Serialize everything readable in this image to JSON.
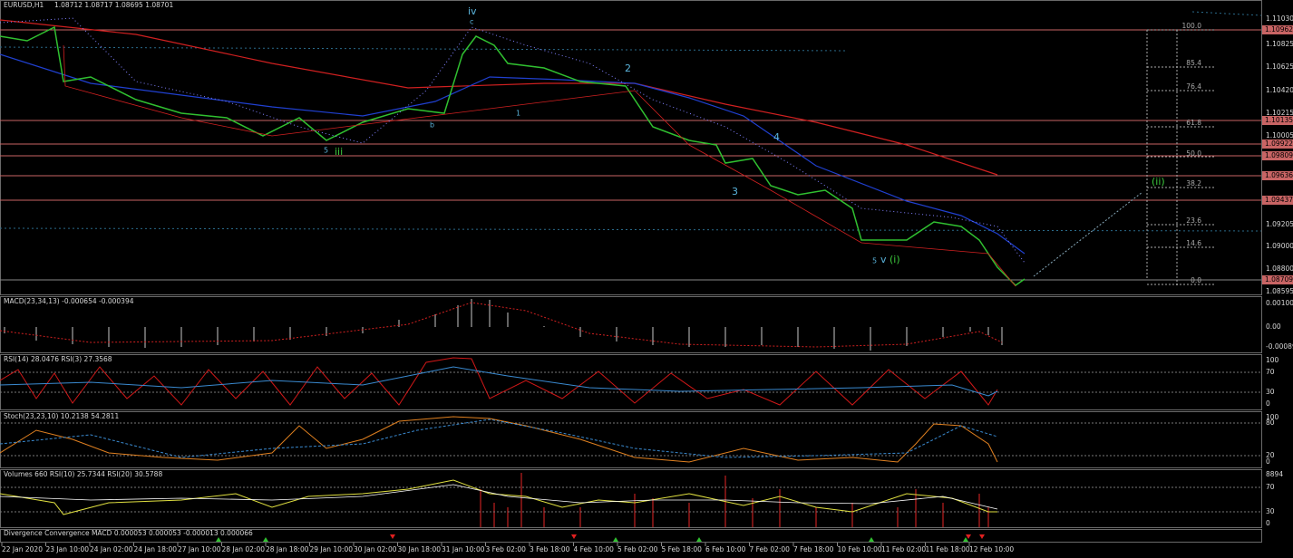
{
  "main": {
    "symbol": "EURUSD,H1",
    "quote": "1.08712 1.08717 1.08695 1.08701",
    "price_labels": [
      "1.11030",
      "1.10825",
      "1.10625",
      "1.10420",
      "1.10215",
      "1.10005",
      "1.09205",
      "1.09000",
      "1.08800",
      "1.08595"
    ],
    "level_labels": [
      "1.10962",
      "1.10135",
      "1.09922",
      "1.09809",
      "1.09636",
      "1.09437",
      "1.08709"
    ],
    "fib_labels": [
      "100.0",
      "85.4",
      "76.4",
      "61.8",
      "50.0",
      "38.2",
      "23.6",
      "14.6",
      "0.0"
    ],
    "wave_labels": [
      "iv",
      "c",
      "b",
      "1",
      "2",
      "3",
      "4",
      "5",
      "iii",
      "5",
      "v",
      "(i)",
      "(ii)"
    ]
  },
  "panels": [
    {
      "title": "MACD(23,34,13) -0.000654 -0.000394",
      "scale": [
        "0.001009",
        "0.00",
        "-0.000896"
      ]
    },
    {
      "title": "RSI(14) 28.0476  RSI(3) 27.3568",
      "scale": [
        "100",
        "70",
        "30",
        "0"
      ]
    },
    {
      "title": "Stoch(23,23,10) 10.2138 54.2811",
      "scale": [
        "100",
        "80",
        "20",
        "0"
      ]
    },
    {
      "title": "Volumes 660  RSI(10) 25.7344  RSI(20) 30.5788",
      "scale": [
        "8894",
        "70",
        "30",
        "0"
      ]
    },
    {
      "title": "Divergence Convergence MACD 0.000053 0.000053 -0.000013 0.000066",
      "scale": []
    }
  ],
  "time_labels": [
    "22 Jan 2020",
    "23 Jan 10:00",
    "24 Jan 02:00",
    "24 Jan 18:00",
    "27 Jan 10:00",
    "28 Jan 02:00",
    "28 Jan 18:00",
    "29 Jan 10:00",
    "30 Jan 02:00",
    "30 Jan 18:00",
    "31 Jan 10:00",
    "3 Feb 02:00",
    "3 Feb 18:00",
    "4 Feb 10:00",
    "5 Feb 02:00",
    "5 Feb 18:00",
    "6 Feb 10:00",
    "7 Feb 02:00",
    "7 Feb 18:00",
    "10 Feb 10:00",
    "11 Feb 02:00",
    "11 Feb 18:00",
    "12 Feb 10:00"
  ]
}
